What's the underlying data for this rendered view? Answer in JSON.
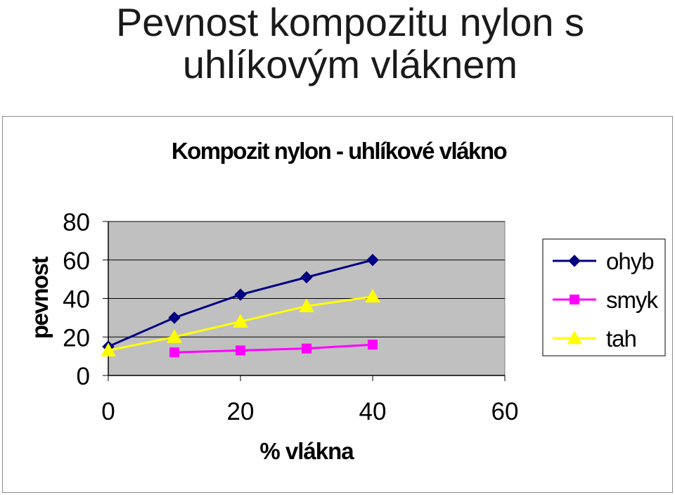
{
  "slide": {
    "title_line1": "Pevnost kompozitu nylon s",
    "title_line2": "uhlíkovým vláknem"
  },
  "chart_data": {
    "type": "line",
    "title": "Kompozit nylon - uhlíkové vlákno",
    "xlabel": "% vlákna",
    "ylabel": "pevnost",
    "xlim": [
      0,
      60
    ],
    "ylim": [
      0,
      80
    ],
    "xticks": [
      "0",
      "20",
      "40",
      "60"
    ],
    "yticks": [
      "0",
      "20",
      "40",
      "60",
      "80"
    ],
    "grid": true,
    "plot_background": "#c0c0c0",
    "legend_position": "right",
    "series": [
      {
        "name": "ohyb",
        "color": "#000080",
        "marker": "diamond",
        "x": [
          0,
          10,
          20,
          30,
          40
        ],
        "y": [
          15,
          30,
          42,
          51,
          60
        ]
      },
      {
        "name": "smyk",
        "color": "#ff00ff",
        "marker": "square",
        "x": [
          10,
          20,
          30,
          40
        ],
        "y": [
          12,
          13,
          14,
          16
        ]
      },
      {
        "name": "tah",
        "color": "#ffff00",
        "marker": "triangle",
        "x": [
          0,
          10,
          20,
          30,
          40
        ],
        "y": [
          13,
          20,
          28,
          36,
          41
        ]
      }
    ]
  }
}
